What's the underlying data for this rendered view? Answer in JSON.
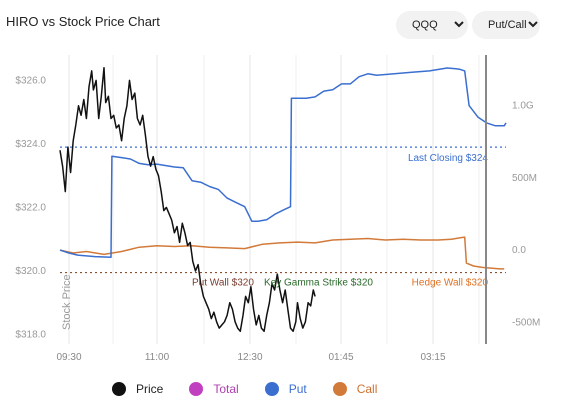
{
  "header": {
    "title": "HIRO vs Stock Price Chart"
  },
  "controls": {
    "symbol": {
      "value": "QQQ",
      "icon": "chevron-down-icon"
    },
    "mode": {
      "value": "Put/Call",
      "icon": "chevron-down-icon"
    }
  },
  "colors": {
    "price": "#111111",
    "total": "#c040c0",
    "put": "#3a6fd0",
    "call": "#d27a3a",
    "put_wall": "#7a3b2e",
    "gamma": "#2a6a2a",
    "hedge_wall": "#e07020"
  },
  "chart_data": {
    "type": "line",
    "x_axis": {
      "ticks": [
        "09:30",
        "11:00",
        "12:30",
        "01:45",
        "03:15"
      ]
    },
    "y_left": {
      "label": "Stock Price",
      "ticks": [
        "$318.0",
        "$320.0",
        "$322.0",
        "$324.0",
        "$326.0"
      ],
      "range": [
        317.7,
        326.8
      ]
    },
    "y_right": {
      "ticks": [
        "-500M",
        "0.0",
        "500M",
        "1.0G"
      ],
      "range": [
        -650,
        1350
      ]
    },
    "series": [
      {
        "name": "Price",
        "axis": "left"
      },
      {
        "name": "Total",
        "axis": "right",
        "visible": false
      },
      {
        "name": "Put",
        "axis": "right"
      },
      {
        "name": "Call",
        "axis": "right"
      }
    ],
    "price_points": [
      [
        0,
        323.8
      ],
      [
        3,
        323.3
      ],
      [
        6,
        322.5
      ],
      [
        9,
        323.9
      ],
      [
        12,
        323.1
      ],
      [
        15,
        324.1
      ],
      [
        18,
        324.6
      ],
      [
        21,
        325.2
      ],
      [
        24,
        324.9
      ],
      [
        27,
        325.4
      ],
      [
        30,
        324.8
      ],
      [
        33,
        325.8
      ],
      [
        36,
        326.3
      ],
      [
        38,
        325.7
      ],
      [
        41,
        326.0
      ],
      [
        44,
        324.8
      ],
      [
        47,
        325.5
      ],
      [
        50,
        326.4
      ],
      [
        52,
        325.3
      ],
      [
        55,
        325.5
      ],
      [
        58,
        324.8
      ],
      [
        61,
        324.9
      ],
      [
        64,
        324.5
      ],
      [
        67,
        324.6
      ],
      [
        70,
        324.1
      ],
      [
        73,
        324.8
      ],
      [
        76,
        325.2
      ],
      [
        79,
        326.0
      ],
      [
        82,
        325.4
      ],
      [
        85,
        325.6
      ],
      [
        88,
        324.8
      ],
      [
        91,
        324.6
      ],
      [
        94,
        324.9
      ],
      [
        97,
        324.3
      ],
      [
        100,
        323.6
      ],
      [
        103,
        323.3
      ],
      [
        106,
        323.6
      ],
      [
        109,
        323.2
      ],
      [
        112,
        323.0
      ],
      [
        115,
        322.5
      ],
      [
        118,
        321.9
      ],
      [
        121,
        322.0
      ],
      [
        124,
        321.8
      ],
      [
        127,
        321.6
      ],
      [
        130,
        321.2
      ],
      [
        133,
        321.4
      ],
      [
        136,
        320.9
      ],
      [
        139,
        321.5
      ],
      [
        142,
        321.2
      ],
      [
        145,
        320.8
      ],
      [
        148,
        320.9
      ],
      [
        151,
        320.3
      ],
      [
        154,
        320.0
      ],
      [
        157,
        320.2
      ],
      [
        160,
        319.6
      ],
      [
        163,
        319.2
      ],
      [
        166,
        319.0
      ],
      [
        169,
        318.8
      ],
      [
        172,
        318.5
      ],
      [
        175,
        318.7
      ],
      [
        178,
        318.4
      ],
      [
        181,
        318.2
      ],
      [
        184,
        318.3
      ],
      [
        187,
        318.4
      ],
      [
        190,
        318.6
      ],
      [
        193,
        319.0
      ],
      [
        196,
        318.8
      ],
      [
        199,
        318.4
      ],
      [
        202,
        318.2
      ],
      [
        205,
        318.1
      ],
      [
        208,
        318.6
      ],
      [
        211,
        319.2
      ],
      [
        214,
        319.0
      ],
      [
        217,
        319.5
      ],
      [
        220,
        318.8
      ],
      [
        223,
        318.3
      ],
      [
        226,
        318.6
      ],
      [
        229,
        318.2
      ],
      [
        232,
        318.1
      ],
      [
        235,
        318.6
      ],
      [
        238,
        319.0
      ],
      [
        241,
        319.6
      ],
      [
        244,
        319.4
      ],
      [
        247,
        319.9
      ],
      [
        250,
        319.4
      ],
      [
        253,
        319.0
      ],
      [
        256,
        319.4
      ],
      [
        259,
        318.8
      ],
      [
        262,
        318.2
      ],
      [
        265,
        318.1
      ],
      [
        268,
        318.4
      ],
      [
        270,
        319.0
      ],
      [
        273,
        318.5
      ],
      [
        276,
        318.2
      ],
      [
        279,
        318.4
      ],
      [
        282,
        319.0
      ],
      [
        285,
        318.9
      ],
      [
        288,
        319.4
      ],
      [
        290,
        319.2
      ]
    ],
    "put_points": [
      [
        0,
        0
      ],
      [
        10,
        -20
      ],
      [
        20,
        -35
      ],
      [
        40,
        -45
      ],
      [
        58,
        -50
      ],
      [
        59,
        650
      ],
      [
        70,
        640
      ],
      [
        80,
        630
      ],
      [
        90,
        600
      ],
      [
        100,
        590
      ],
      [
        110,
        595
      ],
      [
        130,
        575
      ],
      [
        140,
        570
      ],
      [
        150,
        480
      ],
      [
        160,
        470
      ],
      [
        170,
        440
      ],
      [
        180,
        420
      ],
      [
        190,
        360
      ],
      [
        200,
        330
      ],
      [
        210,
        300
      ],
      [
        218,
        200
      ],
      [
        225,
        200
      ],
      [
        235,
        210
      ],
      [
        245,
        250
      ],
      [
        255,
        280
      ],
      [
        262,
        300
      ],
      [
        263,
        1050
      ],
      [
        280,
        1050
      ],
      [
        290,
        1060
      ],
      [
        300,
        1100
      ],
      [
        310,
        1110
      ],
      [
        320,
        1150
      ],
      [
        330,
        1150
      ],
      [
        340,
        1200
      ],
      [
        350,
        1220
      ],
      [
        360,
        1210
      ],
      [
        380,
        1220
      ],
      [
        400,
        1230
      ],
      [
        420,
        1240
      ],
      [
        440,
        1260
      ],
      [
        450,
        1255
      ],
      [
        455,
        1250
      ],
      [
        460,
        1240
      ],
      [
        465,
        1000
      ],
      [
        475,
        920
      ],
      [
        485,
        880
      ],
      [
        495,
        860
      ],
      [
        505,
        860
      ],
      [
        507,
        880
      ]
    ],
    "call_points": [
      [
        0,
        0
      ],
      [
        15,
        -20
      ],
      [
        30,
        -10
      ],
      [
        50,
        -30
      ],
      [
        70,
        -10
      ],
      [
        90,
        20
      ],
      [
        110,
        30
      ],
      [
        130,
        25
      ],
      [
        150,
        30
      ],
      [
        170,
        20
      ],
      [
        190,
        15
      ],
      [
        210,
        10
      ],
      [
        230,
        40
      ],
      [
        250,
        50
      ],
      [
        270,
        55
      ],
      [
        290,
        50
      ],
      [
        310,
        70
      ],
      [
        330,
        75
      ],
      [
        350,
        80
      ],
      [
        370,
        70
      ],
      [
        390,
        75
      ],
      [
        410,
        70
      ],
      [
        430,
        70
      ],
      [
        445,
        75
      ],
      [
        455,
        85
      ],
      [
        460,
        90
      ],
      [
        462,
        -90
      ],
      [
        470,
        -110
      ],
      [
        480,
        -120
      ],
      [
        490,
        -125
      ],
      [
        500,
        -130
      ],
      [
        505,
        -130
      ]
    ],
    "annotations": [
      {
        "label": "Last Closing $324",
        "value": 323.9,
        "axis": "left",
        "color": "#3a6fd0"
      },
      {
        "label": "Put Wall $320",
        "value": 319.95,
        "axis": "left",
        "color": "#7a3b2e"
      },
      {
        "label": "Key Gamma Strike $320",
        "value": 319.95,
        "axis": "left",
        "color": "#2a6a2a"
      },
      {
        "label": "Hedge Wall $320",
        "value": 319.95,
        "axis": "left",
        "color": "#e07020"
      }
    ],
    "legend": {
      "placement": "bottom"
    },
    "grid": {
      "vertical": true,
      "horizontal": false
    }
  },
  "legend": {
    "items": [
      {
        "label": "Price",
        "color": "#111111"
      },
      {
        "label": "Total",
        "color": "#c040c0"
      },
      {
        "label": "Put",
        "color": "#3a6fd0"
      },
      {
        "label": "Call",
        "color": "#d27a3a"
      }
    ]
  }
}
